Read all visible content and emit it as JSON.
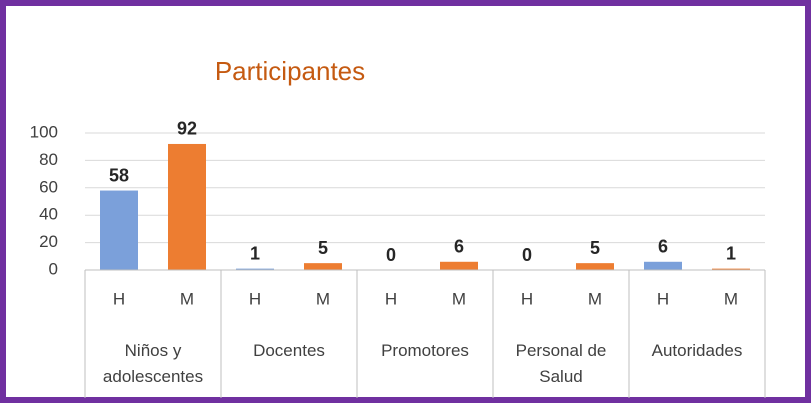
{
  "chart_data": {
    "type": "bar",
    "title": "Participantes",
    "categories": [
      "H",
      "M",
      "H",
      "M",
      "H",
      "M",
      "H",
      "M",
      "H",
      "M"
    ],
    "groups": [
      "Niños y adolescentes",
      "Docentes",
      "Promotores",
      "Personal de Salud",
      "Autoridades"
    ],
    "values": [
      58,
      92,
      1,
      5,
      0,
      6,
      0,
      5,
      6,
      1
    ],
    "colors": [
      "#7ba0da",
      "#ed7d31"
    ],
    "ylim": [
      0,
      100
    ],
    "yticks": [
      0,
      20,
      40,
      60,
      80,
      100
    ],
    "grid": true
  }
}
